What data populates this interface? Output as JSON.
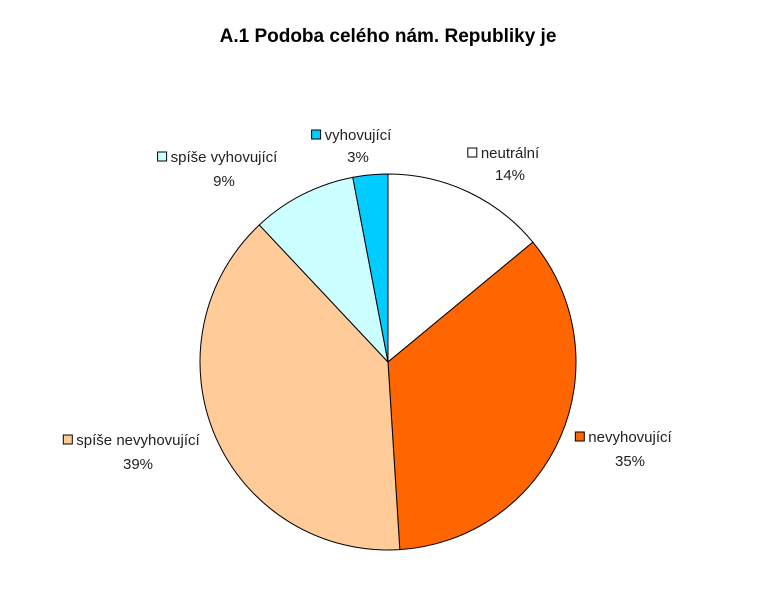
{
  "chart_data": {
    "type": "pie",
    "title": "A.1 Podoba celého nám. Republiky je",
    "slices": [
      {
        "label": "neutrální",
        "value": 14,
        "value_label": "14%",
        "color": "#ffffff"
      },
      {
        "label": "nevyhovující",
        "value": 35,
        "value_label": "35%",
        "color": "#ff6600"
      },
      {
        "label": "spíše nevyhovující",
        "value": 39,
        "value_label": "39%",
        "color": "#ffcc99"
      },
      {
        "label": "spíše vyhovující",
        "value": 9,
        "value_label": "9%",
        "color": "#ccffff"
      },
      {
        "label": "vyhovující",
        "value": 3,
        "value_label": "3%",
        "color": "#00ccff"
      }
    ]
  }
}
